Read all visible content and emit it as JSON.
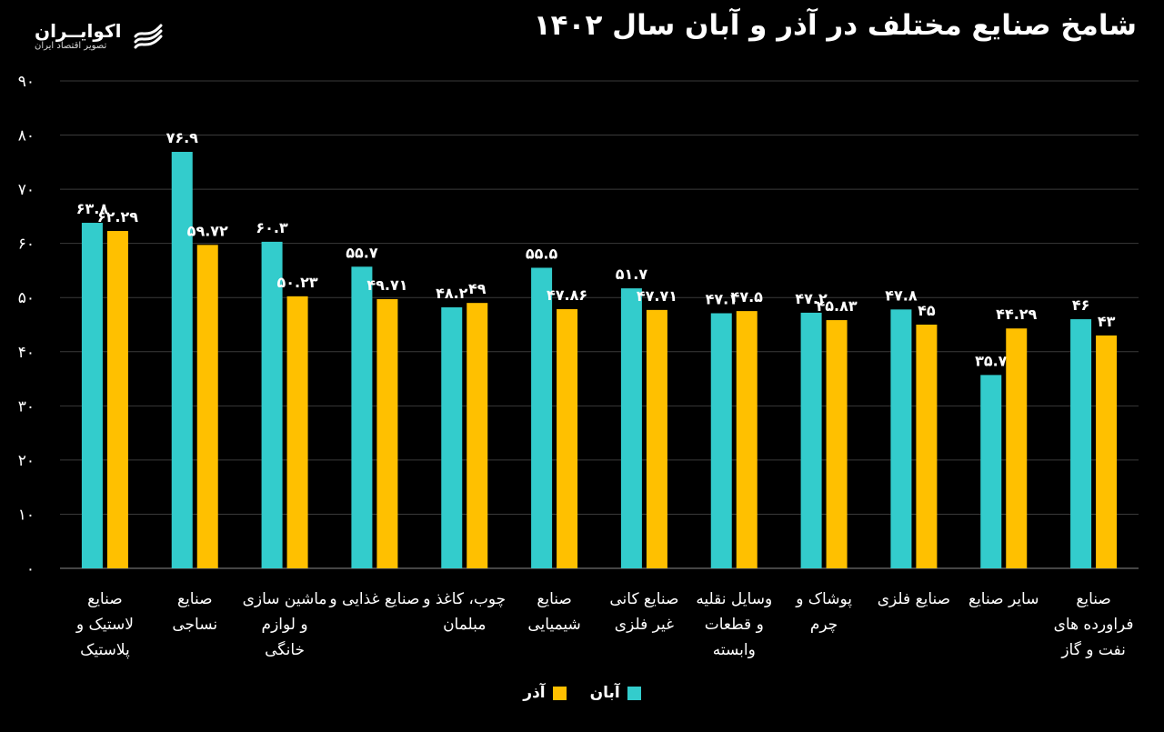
{
  "brand": {
    "name": "اکوایــران",
    "tagline": "تصویر اقتصاد ایران",
    "logo_icon": "stacked-wave-logo-icon"
  },
  "colors": {
    "aban": "#33cccc",
    "azar": "#ffc000",
    "background": "#000000",
    "grid": "#3a3a3a",
    "text": "#ffffff"
  },
  "chart_data": {
    "type": "bar",
    "title": "شامخ صنایع مختلف در آذر و آبان سال ۱۴۰۲",
    "ylim": [
      0,
      90
    ],
    "yticks": [
      0,
      10,
      20,
      30,
      40,
      50,
      60,
      70,
      80,
      90
    ],
    "ytick_labels": [
      "۰",
      "۱۰",
      "۲۰",
      "۳۰",
      "۴۰",
      "۵۰",
      "۶۰",
      "۷۰",
      "۸۰",
      "۹۰"
    ],
    "grid": true,
    "legend_position": "bottom-center",
    "categories": [
      [
        "صنایع",
        "لاستیک و",
        "پلاستیک"
      ],
      [
        "صنایع",
        "نساجی"
      ],
      [
        "ماشین سازی",
        "و لوازم",
        "خانگی"
      ],
      [
        "صنایع غذایی و"
      ],
      [
        "چوب، کاغذ و",
        "مبلمان"
      ],
      [
        "صنایع",
        "شیمیایی"
      ],
      [
        "صنایع کانی",
        "غیر فلزی"
      ],
      [
        "وسایل نقلیه",
        "و قطعات",
        "وابسته"
      ],
      [
        "پوشاک و",
        "چرم"
      ],
      [
        "صنایع فلزی"
      ],
      [
        "سایر صنایع"
      ],
      [
        "صنایع",
        "فراورده های",
        "نفت و گاز"
      ]
    ],
    "series": [
      {
        "name": "آبان",
        "values": [
          63.8,
          76.9,
          60.3,
          55.7,
          48.2,
          55.5,
          51.7,
          47.1,
          47.2,
          47.8,
          35.7,
          46
        ],
        "labels": [
          "۶۳.۸",
          "۷۶.۹",
          "۶۰.۳",
          "۵۵.۷",
          "۴۸.۲",
          "۵۵.۵",
          "۵۱.۷",
          "۴۷.۱",
          "۴۷.۲",
          "۴۷.۸",
          "۳۵.۷",
          "۴۶"
        ]
      },
      {
        "name": "آذر",
        "values": [
          62.29,
          59.72,
          50.23,
          49.71,
          49,
          47.86,
          47.71,
          47.5,
          45.83,
          45,
          44.29,
          43
        ],
        "labels": [
          "۶۲.۲۹",
          "۵۹.۷۲",
          "۵۰.۲۳",
          "۴۹.۷۱",
          "۴۹",
          "۴۷.۸۶",
          "۴۷.۷۱",
          "۴۷.۵",
          "۴۵.۸۳",
          "۴۵",
          "۴۴.۲۹",
          "۴۳"
        ]
      }
    ]
  }
}
